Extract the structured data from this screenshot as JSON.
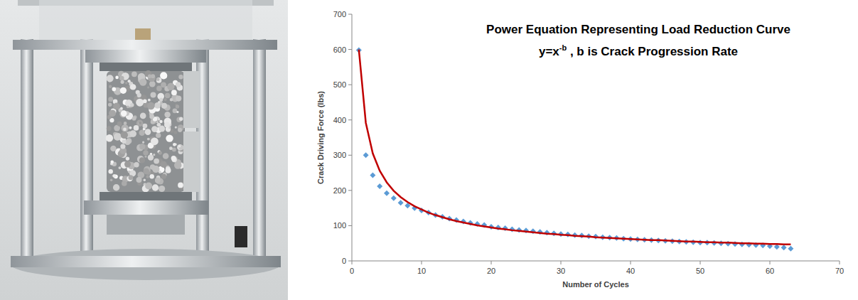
{
  "chart_data": {
    "type": "scatter",
    "annotations": [
      "Power Equation Representing Load Reduction Curve",
      [
        "y=x",
        "-b",
        " , b is Crack Progression Rate"
      ]
    ],
    "x_label": "Number of Cycles",
    "y_label": "Crack Driving Force (lbs)",
    "x": [
      1,
      2,
      3,
      4,
      5,
      6,
      7,
      8,
      9,
      10,
      11,
      12,
      13,
      14,
      15,
      16,
      17,
      18,
      19,
      20,
      21,
      22,
      23,
      24,
      25,
      26,
      27,
      28,
      29,
      30,
      31,
      32,
      33,
      34,
      35,
      36,
      37,
      38,
      39,
      40,
      41,
      42,
      43,
      44,
      45,
      46,
      47,
      48,
      49,
      50,
      51,
      52,
      53,
      54,
      55,
      56,
      57,
      58,
      59,
      60,
      61,
      62,
      63
    ],
    "series": [
      {
        "type": "scatter",
        "color": "#5b9bd5",
        "marker": "diamond",
        "values": [
          598,
          300,
          243,
          212,
          192,
          178,
          165,
          157,
          150,
          143,
          137,
          130,
          125,
          120,
          116,
          112,
          108,
          105,
          102,
          97,
          95,
          93,
          90,
          88,
          86,
          84,
          82,
          80,
          78,
          76,
          75,
          73,
          72,
          70,
          69,
          67,
          66,
          65,
          63,
          62,
          61,
          60,
          59,
          58,
          57,
          56,
          55,
          54,
          53,
          52,
          52,
          51,
          50,
          49,
          48,
          47,
          46,
          45,
          44,
          42,
          40,
          38,
          35
        ]
      },
      {
        "type": "line",
        "color": "#c00000",
        "line_style": "solid",
        "values": [
          600,
          392,
          305,
          256,
          223,
          199,
          181,
          167,
          155,
          146,
          137,
          130,
          124,
          118,
          113,
          109,
          105,
          101,
          98,
          95,
          92,
          90,
          87,
          85,
          83,
          81,
          79,
          77,
          76,
          74,
          73,
          71,
          70,
          69,
          67,
          66,
          65,
          64,
          63,
          62,
          61,
          60,
          59,
          59,
          58,
          57,
          56,
          55,
          55,
          54,
          53,
          53,
          52,
          52,
          51,
          50,
          50,
          49,
          49,
          48,
          48,
          47,
          47
        ]
      }
    ],
    "xlim": [
      0,
      70
    ],
    "xticks": [
      0,
      10,
      20,
      30,
      40,
      50,
      60,
      70
    ],
    "ylim": [
      0,
      700
    ],
    "yticks": [
      0,
      100,
      200,
      300,
      400,
      500,
      600,
      700
    ],
    "grid": false
  }
}
